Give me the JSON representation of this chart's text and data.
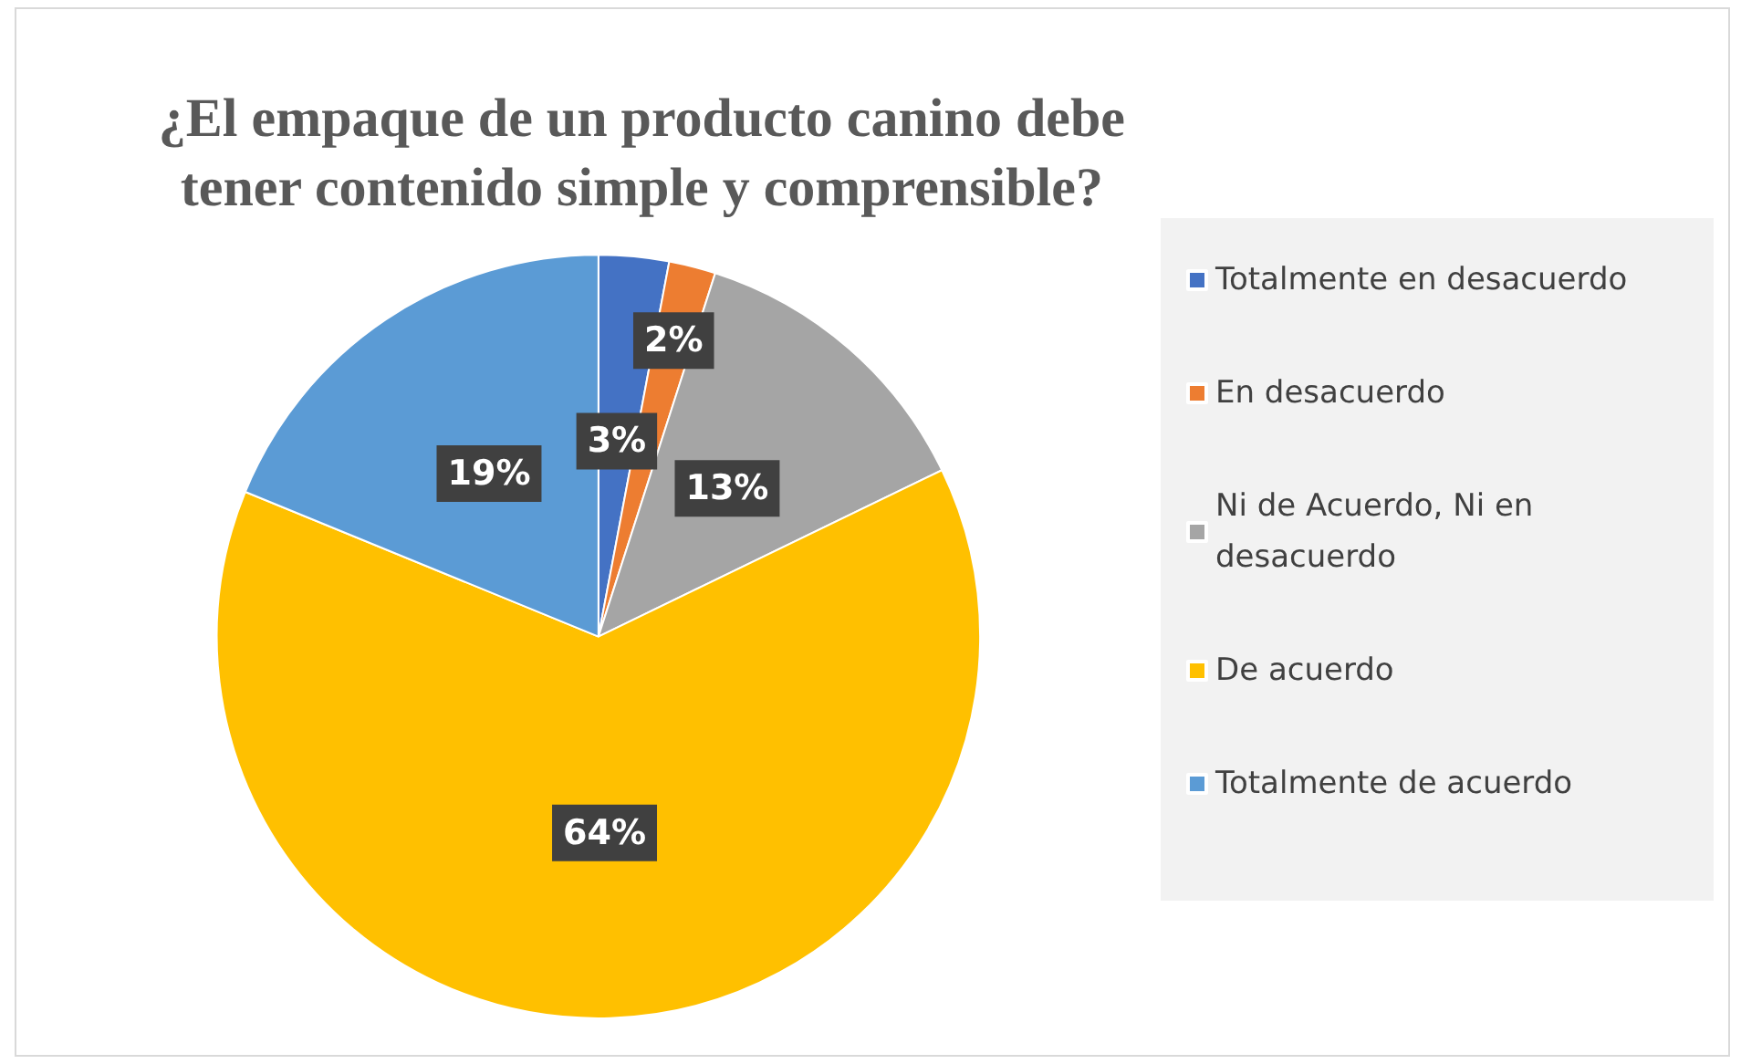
{
  "chart_data": {
    "type": "pie",
    "title": "¿El empaque de un producto canino debe tener contenido simple y comprensible?",
    "categories": [
      "Totalmente en desacuerdo",
      "En desacuerdo",
      "Ni de Acuerdo, Ni en desacuerdo",
      "De acuerdo",
      "Totalmente de acuerdo"
    ],
    "values": [
      3,
      2,
      13,
      64,
      19
    ],
    "colors": [
      "#4472c4",
      "#ed7d31",
      "#a5a5a5",
      "#ffc000",
      "#5b9bd5"
    ],
    "value_labels": [
      "3%",
      "2%",
      "13%",
      "64%",
      "19%"
    ],
    "legend": "right"
  }
}
